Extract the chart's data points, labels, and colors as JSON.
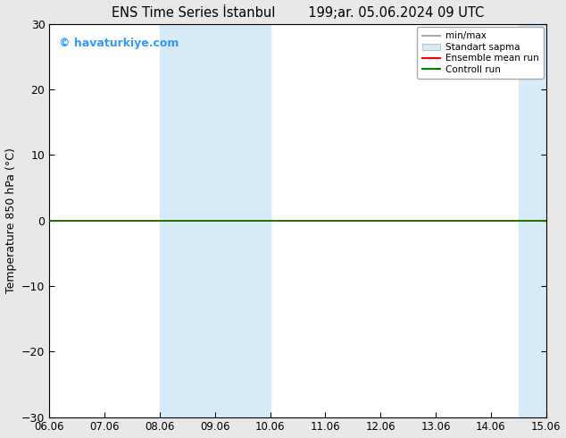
{
  "title_left": "ENS Time Series İstanbul",
  "title_right": "199;ar. 05.06.2024 09 UTC",
  "ylabel": "Temperature 850 hPa (°C)",
  "xlim_labels": [
    "06.06",
    "07.06",
    "08.06",
    "09.06",
    "10.06",
    "11.06",
    "12.06",
    "13.06",
    "14.06",
    "15.06"
  ],
  "ylim": [
    -30,
    30
  ],
  "yticks": [
    -30,
    -20,
    -10,
    0,
    10,
    20,
    30
  ],
  "bg_color": "#e8e8e8",
  "plot_bg_color": "#ffffff",
  "shaded_color": "#d6eaf8",
  "green_line_y": 0,
  "watermark": "© havaturkiye.com",
  "watermark_color": "#3399ff",
  "legend_labels": [
    "min/max",
    "Standart sapma",
    "Ensemble mean run",
    "Controll run"
  ],
  "legend_colors": [
    "#aaaaaa",
    "#d6eaf8",
    "red",
    "green"
  ]
}
